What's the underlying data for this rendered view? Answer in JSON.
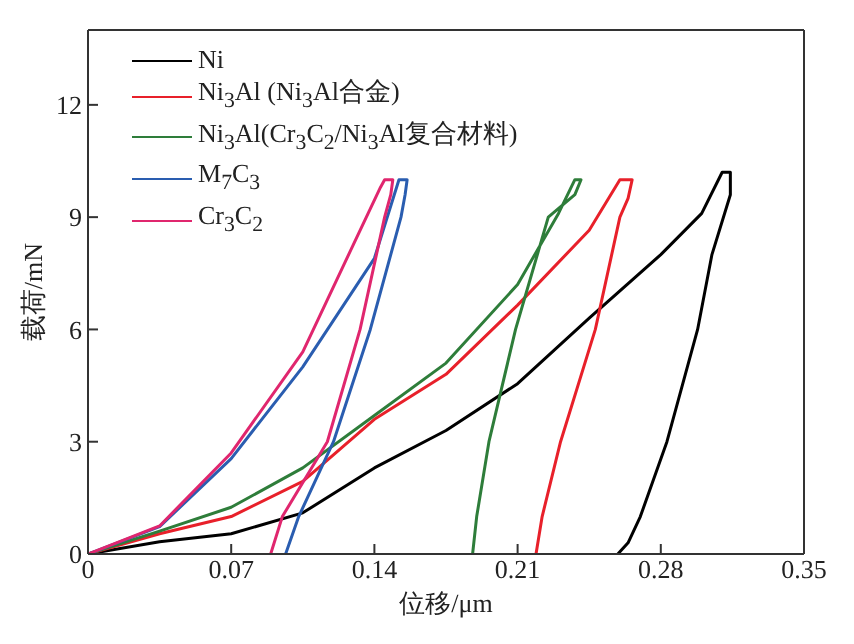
{
  "chart_data": {
    "type": "line",
    "xlabel": "位移/μm",
    "ylabel": "载荷/mN",
    "xlim": [
      0,
      0.35
    ],
    "xticks": [
      0,
      0.07,
      0.14,
      0.21,
      0.28,
      0.35
    ],
    "ylim": [
      0,
      14
    ],
    "yticks": [
      0,
      3,
      6,
      9,
      12
    ],
    "grid": false,
    "legend": "top left",
    "marker": "none",
    "line_style": "solid",
    "series": [
      {
        "name": "Ni",
        "color": "#000000",
        "x": [
          0,
          0.035,
          0.07,
          0.105,
          0.14,
          0.175,
          0.21,
          0.245,
          0.28,
          0.3,
          0.31,
          0.314,
          0.314,
          0.305,
          0.298,
          0.283,
          0.27,
          0.264,
          0.259
        ],
        "values": [
          0,
          0.33,
          0.54,
          1.1,
          2.3,
          3.3,
          4.55,
          6.3,
          8.0,
          9.1,
          10.2,
          10.2,
          9.6,
          8.0,
          6.0,
          3.0,
          1.0,
          0.3,
          0
        ]
      },
      {
        "name": "Ni$_{3}$Al (Ni$_{3}$Al合金)",
        "color": "#e8202a",
        "x": [
          0,
          0.035,
          0.07,
          0.105,
          0.14,
          0.175,
          0.21,
          0.245,
          0.26,
          0.266,
          0.264,
          0.26,
          0.248,
          0.231,
          0.222,
          0.219
        ],
        "values": [
          0,
          0.54,
          1.0,
          1.94,
          3.6,
          4.8,
          6.65,
          8.65,
          10,
          10,
          9.5,
          9,
          6,
          3,
          1,
          0
        ]
      },
      {
        "name": "Ni$_{3}$Al(Cr$_{3}$C$_{2}$/Ni$_{3}$Al复合材料)",
        "color": "#2e7d3a",
        "x": [
          0,
          0.035,
          0.07,
          0.105,
          0.14,
          0.175,
          0.21,
          0.23,
          0.238,
          0.241,
          0.238,
          0.225,
          0.209,
          0.196,
          0.19,
          0.188
        ],
        "values": [
          0,
          0.61,
          1.25,
          2.3,
          3.7,
          5.1,
          7.2,
          9.1,
          10,
          10,
          9.6,
          9,
          6,
          3,
          1,
          0
        ]
      },
      {
        "name": "M$_{7}$C$_{3}$",
        "color": "#2a5db0",
        "x": [
          0,
          0.035,
          0.07,
          0.105,
          0.14,
          0.152,
          0.156,
          0.155,
          0.153,
          0.138,
          0.12,
          0.103,
          0.0966
        ],
        "values": [
          0,
          0.73,
          2.55,
          5.0,
          7.9,
          10,
          10,
          9.6,
          9,
          6,
          3,
          1,
          0
        ]
      },
      {
        "name": "Cr$_{3}$C$_{2}$",
        "color": "#e0266e",
        "x": [
          0,
          0.035,
          0.07,
          0.105,
          0.13,
          0.143,
          0.145,
          0.149,
          0.148,
          0.145,
          0.133,
          0.117,
          0.095,
          0.0893
        ],
        "values": [
          0,
          0.75,
          2.7,
          5.4,
          8.3,
          9.8,
          10,
          10,
          9.6,
          9,
          6,
          3,
          1,
          0
        ]
      }
    ]
  }
}
